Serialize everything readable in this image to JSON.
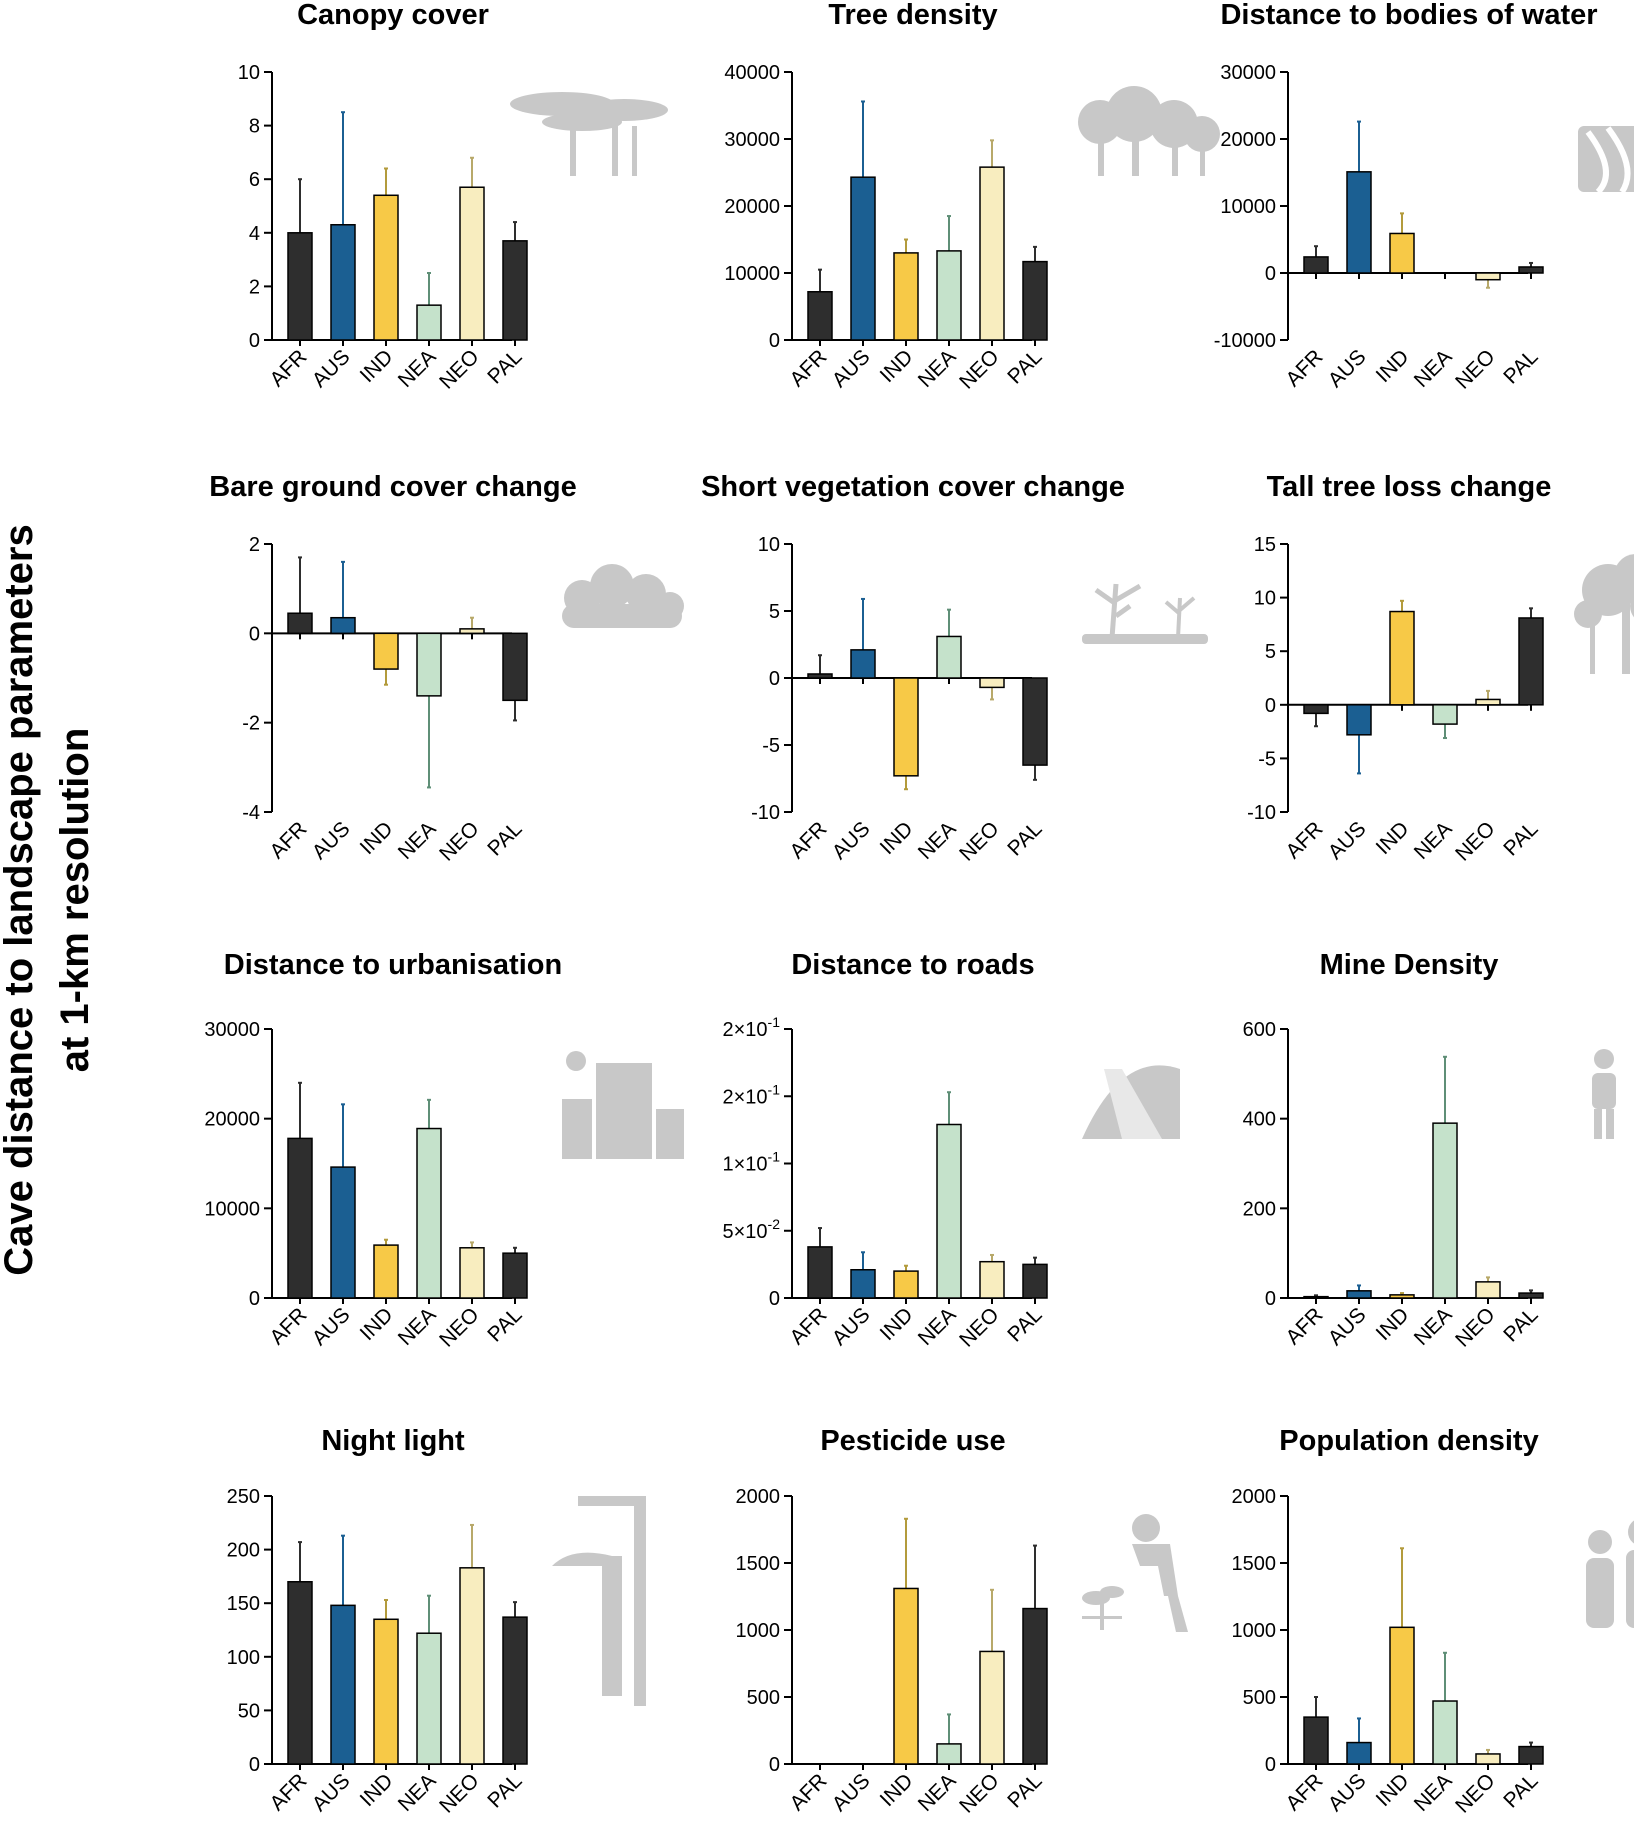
{
  "y_axis_title_line1": "Cave distance to landscape parameters",
  "y_axis_title_line2": "at 1-km resolution",
  "category_colors": {
    "AFR": "#2e2e2e",
    "AUS": "#1b5f92",
    "IND": "#f7c947",
    "NEA": "#c5e2cb",
    "NEO": "#f8edbf",
    "PAL": "#2e2e2e"
  },
  "error_bar_colors": {
    "AFR": "#2e2e2e",
    "AUS": "#1b5f92",
    "IND": "#b39b3c",
    "NEA": "#5f8f77",
    "NEO": "#b8a96a",
    "PAL": "#2e2e2e"
  },
  "chart_data": [
    {
      "type": "bar",
      "title": "Canopy cover",
      "icon": "acacia-trees-icon",
      "categories": [
        "AFR",
        "AUS",
        "IND",
        "NEA",
        "NEO",
        "PAL"
      ],
      "values": [
        4.0,
        4.3,
        5.4,
        1.3,
        5.7,
        3.7
      ],
      "errors": [
        2.0,
        4.2,
        1.0,
        1.2,
        1.1,
        0.7
      ],
      "ylim": [
        0,
        10
      ],
      "yticks": [
        0,
        2,
        4,
        6,
        8,
        10
      ],
      "ytick_labels": [
        "0",
        "2",
        "4",
        "6",
        "8",
        "10"
      ]
    },
    {
      "type": "bar",
      "title": "Tree density",
      "icon": "forest-icon",
      "categories": [
        "AFR",
        "AUS",
        "IND",
        "NEA",
        "NEO",
        "PAL"
      ],
      "values": [
        7200,
        24300,
        13000,
        13300,
        25800,
        11700
      ],
      "errors": [
        3300,
        11300,
        2000,
        5200,
        4000,
        2200
      ],
      "ylim": [
        0,
        40000
      ],
      "yticks": [
        0,
        10000,
        20000,
        30000,
        40000
      ],
      "ytick_labels": [
        "0",
        "10000",
        "20000",
        "30000",
        "40000"
      ]
    },
    {
      "type": "bar",
      "title": "Distance to bodies of water",
      "icon": "river-icon",
      "categories": [
        "AFR",
        "AUS",
        "IND",
        "NEA",
        "NEO",
        "PAL"
      ],
      "values": [
        2400,
        15100,
        5900,
        0,
        -1000,
        900
      ],
      "errors": [
        1600,
        7500,
        3000,
        0,
        1200,
        600
      ],
      "ylim": [
        -10000,
        30000
      ],
      "yticks": [
        -10000,
        0,
        10000,
        20000,
        30000
      ],
      "ytick_labels": [
        "-10000",
        "0",
        "10000",
        "20000",
        "30000"
      ]
    },
    {
      "type": "bar",
      "title": "Bare ground cover change",
      "icon": "shrub-icon",
      "categories": [
        "AFR",
        "AUS",
        "IND",
        "NEA",
        "NEO",
        "PAL"
      ],
      "values": [
        0.45,
        0.35,
        -0.8,
        -1.4,
        0.1,
        -1.5
      ],
      "errors": [
        1.25,
        1.25,
        0.35,
        2.05,
        0.25,
        0.45
      ],
      "ylim": [
        -4,
        2
      ],
      "yticks": [
        -4,
        -2,
        0,
        2
      ],
      "ytick_labels": [
        "-4",
        "-2",
        "0",
        "2"
      ]
    },
    {
      "type": "bar",
      "title": "Short vegetation cover change",
      "icon": "bare-trees-icon",
      "categories": [
        "AFR",
        "AUS",
        "IND",
        "NEA",
        "NEO",
        "PAL"
      ],
      "values": [
        0.3,
        2.1,
        -7.3,
        3.1,
        -0.7,
        -6.5
      ],
      "errors": [
        1.4,
        3.8,
        1.0,
        2.0,
        0.9,
        1.1
      ],
      "ylim": [
        -10,
        10
      ],
      "yticks": [
        -10,
        -5,
        0,
        5,
        10
      ],
      "ytick_labels": [
        "-10",
        "-5",
        "0",
        "5",
        "10"
      ]
    },
    {
      "type": "bar",
      "title": "Tall tree loss change",
      "icon": "tree-icon",
      "categories": [
        "AFR",
        "AUS",
        "IND",
        "NEA",
        "NEO",
        "PAL"
      ],
      "values": [
        -0.8,
        -2.8,
        8.7,
        -1.8,
        0.5,
        8.1
      ],
      "errors": [
        1.2,
        3.6,
        1.0,
        1.3,
        0.8,
        0.9
      ],
      "ylim": [
        -10,
        15
      ],
      "yticks": [
        -10,
        -5,
        0,
        5,
        10,
        15
      ],
      "ytick_labels": [
        "-10",
        "-5",
        "0",
        "5",
        "10",
        "15"
      ]
    },
    {
      "type": "bar",
      "title": "Distance to urbanisation",
      "icon": "building-icon",
      "categories": [
        "AFR",
        "AUS",
        "IND",
        "NEA",
        "NEO",
        "PAL"
      ],
      "values": [
        17800,
        14600,
        5900,
        18900,
        5600,
        5000
      ],
      "errors": [
        6200,
        7000,
        600,
        3200,
        600,
        600
      ],
      "ylim": [
        0,
        30000
      ],
      "yticks": [
        0,
        10000,
        20000,
        30000
      ],
      "ytick_labels": [
        "0",
        "10000",
        "20000",
        "30000"
      ]
    },
    {
      "type": "bar",
      "title": "Distance to roads",
      "icon": "road-icon",
      "categories": [
        "AFR",
        "AUS",
        "IND",
        "NEA",
        "NEO",
        "PAL"
      ],
      "values": [
        0.038,
        0.021,
        0.02,
        0.129,
        0.027,
        0.025
      ],
      "errors": [
        0.014,
        0.013,
        0.004,
        0.024,
        0.005,
        0.005
      ],
      "ylim": [
        0,
        0.2
      ],
      "yticks": [
        0,
        0.05,
        0.1,
        0.15,
        0.2
      ],
      "ytick_labels": [
        "0",
        "5×10",
        "1×10",
        "2×10",
        "2×10"
      ],
      "ytick_exponents": [
        "",
        "-2",
        "-1",
        "-1",
        "-1"
      ]
    },
    {
      "type": "bar",
      "title": "Mine Density",
      "icon": "miner-icon",
      "categories": [
        "AFR",
        "AUS",
        "IND",
        "NEA",
        "NEO",
        "PAL"
      ],
      "values": [
        3,
        16,
        7,
        390,
        36,
        11
      ],
      "errors": [
        3,
        12,
        4,
        148,
        10,
        6
      ],
      "ylim": [
        0,
        600
      ],
      "yticks": [
        0,
        200,
        400,
        600
      ],
      "ytick_labels": [
        "0",
        "200",
        "400",
        "600"
      ]
    },
    {
      "type": "bar",
      "title": "Night light",
      "icon": "street-lamp-icon",
      "categories": [
        "AFR",
        "AUS",
        "IND",
        "NEA",
        "NEO",
        "PAL"
      ],
      "values": [
        170,
        148,
        135,
        122,
        183,
        137
      ],
      "errors": [
        37,
        65,
        18,
        35,
        40,
        14
      ],
      "ylim": [
        0,
        250
      ],
      "yticks": [
        0,
        50,
        100,
        150,
        200,
        250
      ],
      "ytick_labels": [
        "0",
        "50",
        "100",
        "150",
        "200",
        "250"
      ]
    },
    {
      "type": "bar",
      "title": "Pesticide use",
      "icon": "farmer-spraying-icon",
      "categories": [
        "AFR",
        "AUS",
        "IND",
        "NEA",
        "NEO",
        "PAL"
      ],
      "values": [
        0,
        0,
        1310,
        150,
        840,
        1160
      ],
      "errors": [
        0,
        0,
        520,
        220,
        460,
        470
      ],
      "ylim": [
        0,
        2000
      ],
      "yticks": [
        0,
        500,
        1000,
        1500,
        2000
      ],
      "ytick_labels": [
        "0",
        "500",
        "1000",
        "1500",
        "2000"
      ]
    },
    {
      "type": "bar",
      "title": "Population density",
      "icon": "people-icon",
      "categories": [
        "AFR",
        "AUS",
        "IND",
        "NEA",
        "NEO",
        "PAL"
      ],
      "values": [
        350,
        160,
        1020,
        470,
        75,
        130
      ],
      "errors": [
        150,
        180,
        590,
        360,
        30,
        30
      ],
      "ylim": [
        0,
        2000
      ],
      "yticks": [
        0,
        500,
        1000,
        1500,
        2000
      ],
      "ytick_labels": [
        "0",
        "500",
        "1000",
        "1500",
        "2000"
      ]
    }
  ]
}
